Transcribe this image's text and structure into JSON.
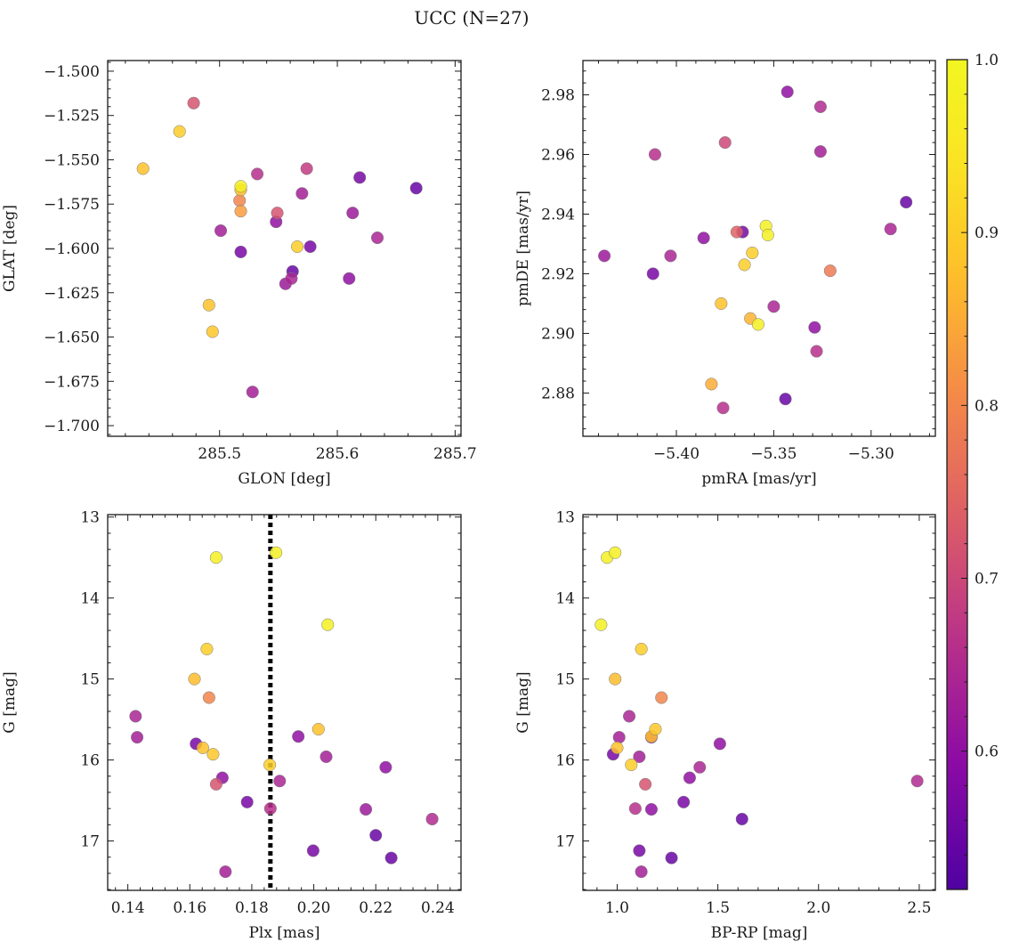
{
  "figure": {
    "title": "UCC (N=27)",
    "colorbar": {
      "range": [
        0.52,
        1.0
      ],
      "ticks": [
        "0.6",
        "0.7",
        "0.8",
        "0.9",
        "1.0"
      ],
      "colormap": "plasma"
    }
  },
  "chart_data": [
    {
      "type": "scatter",
      "name": "glon-glat",
      "xlabel": "GLON [deg]",
      "ylabel": "GLAT [deg]",
      "xlim": [
        285.405,
        285.705
      ],
      "ylim": [
        -1.706,
        -1.494
      ],
      "xticks": [
        285.5,
        285.6,
        285.7
      ],
      "xtick_labels": [
        "285.5",
        "285.6",
        "285.7"
      ],
      "yticks": [
        -1.7,
        -1.675,
        -1.65,
        -1.625,
        -1.6,
        -1.575,
        -1.55,
        -1.525,
        -1.5
      ],
      "ytick_labels": [
        "−1.700",
        "−1.675",
        "−1.650",
        "−1.625",
        "−1.600",
        "−1.575",
        "−1.550",
        "−1.525",
        "−1.500"
      ],
      "x": [
        285.478,
        285.466,
        285.435,
        285.518,
        285.518,
        285.517,
        285.532,
        285.501,
        285.518,
        285.518,
        285.574,
        285.549,
        285.548,
        285.57,
        285.577,
        285.566,
        285.562,
        285.561,
        285.491,
        285.494,
        285.528,
        285.619,
        285.613,
        285.61,
        285.634,
        285.667,
        285.556
      ],
      "y": [
        -1.518,
        -1.534,
        -1.555,
        -1.565,
        -1.567,
        -1.573,
        -1.558,
        -1.59,
        -1.579,
        -1.602,
        -1.555,
        -1.58,
        -1.585,
        -1.569,
        -1.599,
        -1.599,
        -1.613,
        -1.617,
        -1.632,
        -1.647,
        -1.681,
        -1.56,
        -1.58,
        -1.617,
        -1.594,
        -1.566,
        -1.62
      ]
    },
    {
      "type": "scatter",
      "name": "pmra-pmde",
      "xlabel": "pmRA [mas/yr]",
      "ylabel": "pmDE [mas/yr]",
      "xlim": [
        -5.448,
        -5.267
      ],
      "ylim": [
        2.8655,
        2.9915
      ],
      "xticks": [
        -5.4,
        -5.35,
        -5.3
      ],
      "xtick_labels": [
        "−5.40",
        "−5.35",
        "−5.30"
      ],
      "yticks": [
        2.88,
        2.9,
        2.92,
        2.94,
        2.96,
        2.98
      ],
      "ytick_labels": [
        "2.88",
        "2.90",
        "2.92",
        "2.94",
        "2.96",
        "2.98"
      ],
      "x": [
        -5.437,
        -5.412,
        -5.411,
        -5.403,
        -5.386,
        -5.376,
        -5.375,
        -5.377,
        -5.369,
        -5.366,
        -5.365,
        -5.362,
        -5.361,
        -5.358,
        -5.354,
        -5.353,
        -5.35,
        -5.344,
        -5.343,
        -5.329,
        -5.328,
        -5.326,
        -5.326,
        -5.321,
        -5.29,
        -5.282,
        -5.382
      ],
      "y": [
        2.926,
        2.92,
        2.96,
        2.926,
        2.932,
        2.875,
        2.964,
        2.91,
        2.934,
        2.934,
        2.923,
        2.905,
        2.927,
        2.903,
        2.936,
        2.933,
        2.909,
        2.878,
        2.981,
        2.902,
        2.894,
        2.961,
        2.976,
        2.921,
        2.935,
        2.944,
        2.883
      ]
    },
    {
      "type": "scatter",
      "name": "plx-g",
      "xlabel": "Plx [mas]",
      "ylabel": "G [mag]",
      "xlim": [
        0.1335,
        0.2475
      ],
      "ylim": [
        17.61,
        12.97
      ],
      "xticks": [
        0.14,
        0.16,
        0.18,
        0.2,
        0.22,
        0.24
      ],
      "xtick_labels": [
        "0.14",
        "0.16",
        "0.18",
        "0.20",
        "0.22",
        "0.24"
      ],
      "yticks": [
        13,
        14,
        15,
        16,
        17
      ],
      "ytick_labels": [
        "13",
        "14",
        "15",
        "16",
        "17"
      ],
      "vline": 0.186,
      "x": [
        0.1685,
        0.1878,
        0.2045,
        0.1655,
        0.1615,
        0.1662,
        0.1425,
        0.143,
        0.1642,
        0.162,
        0.1675,
        0.1685,
        0.1705,
        0.1715,
        0.1785,
        0.1858,
        0.186,
        0.189,
        0.195,
        0.2015,
        0.204,
        0.1998,
        0.2168,
        0.22,
        0.2232,
        0.225,
        0.2382
      ],
      "y": [
        13.5,
        13.44,
        14.33,
        14.63,
        15.0,
        15.23,
        15.46,
        15.72,
        15.85,
        15.8,
        15.93,
        16.3,
        16.22,
        17.38,
        16.52,
        16.06,
        16.6,
        16.26,
        15.71,
        15.62,
        15.96,
        17.12,
        16.61,
        16.93,
        16.09,
        17.21,
        16.73
      ]
    },
    {
      "type": "scatter",
      "name": "bprp-g",
      "xlabel": "BP-RP [mag]",
      "ylabel": "G [mag]",
      "xlim": [
        0.83,
        2.58
      ],
      "ylim": [
        17.61,
        12.97
      ],
      "xticks": [
        1.0,
        1.5,
        2.0,
        2.5
      ],
      "xtick_labels": [
        "1.0",
        "1.5",
        "2.0",
        "2.5"
      ],
      "yticks": [
        13,
        14,
        15,
        16,
        17
      ],
      "ytick_labels": [
        "13",
        "14",
        "15",
        "16",
        "17"
      ],
      "x": [
        0.95,
        0.99,
        0.92,
        1.12,
        0.99,
        1.22,
        1.06,
        1.01,
        1.0,
        0.98,
        1.19,
        1.14,
        1.36,
        1.12,
        1.33,
        1.07,
        1.09,
        1.41,
        1.17,
        1.17,
        1.11,
        1.11,
        1.17,
        1.62,
        1.51,
        1.27,
        2.49
      ],
      "y": [
        13.5,
        13.44,
        14.33,
        14.63,
        15.0,
        15.23,
        15.46,
        15.72,
        15.85,
        15.93,
        15.62,
        16.3,
        16.22,
        17.38,
        16.52,
        16.06,
        16.6,
        16.09,
        16.61,
        15.71,
        15.96,
        17.12,
        15.72,
        16.73,
        15.8,
        17.21,
        16.26
      ]
    }
  ],
  "member_prob": [
    0.72,
    0.9,
    0.88,
    0.98,
    0.87,
    0.8,
    0.66,
    0.63,
    0.83,
    0.57,
    0.68,
    0.72,
    0.6,
    0.63,
    0.57,
    0.9,
    0.55,
    0.64,
    0.88,
    0.89,
    0.63,
    0.57,
    0.62,
    0.6,
    0.64,
    0.55,
    0.62
  ],
  "member_prob_pm": [
    0.62,
    0.57,
    0.66,
    0.64,
    0.6,
    0.66,
    0.7,
    0.88,
    0.74,
    0.57,
    0.9,
    0.86,
    0.9,
    0.98,
    0.98,
    0.98,
    0.64,
    0.55,
    0.6,
    0.6,
    0.66,
    0.63,
    0.65,
    0.78,
    0.64,
    0.55,
    0.85
  ],
  "member_prob_cmd": [
    0.98,
    0.98,
    0.98,
    0.9,
    0.87,
    0.8,
    0.64,
    0.63,
    0.88,
    0.57,
    0.89,
    0.72,
    0.6,
    0.63,
    0.57,
    0.9,
    0.66,
    0.64,
    0.6,
    0.88,
    0.63,
    0.57,
    0.62,
    0.55,
    0.6,
    0.55,
    0.65
  ]
}
